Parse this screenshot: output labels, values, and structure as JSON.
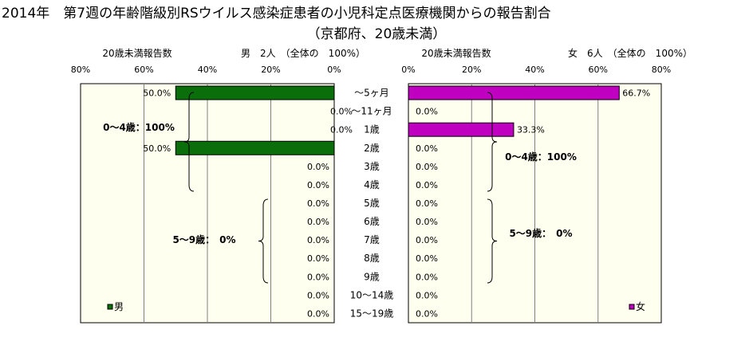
{
  "title_line1": "2014年　第7週の年齢階級別RSウイルス感染症患者の小児科定点医療機関からの報告割合",
  "title_line2": "（京都府、20歳未満）",
  "chart_data": [
    {
      "type": "bar",
      "orientation": "horizontal",
      "direction": "right-to-left",
      "panel": "male",
      "header_left": "20歳未満報告数",
      "header_right": "男　2人　（全体の　100%）",
      "legend": "男",
      "legend_color": "#0a6e0a",
      "bar_color": "#0a6e0a",
      "xlim": [
        0,
        80
      ],
      "x_ticks": [
        "80%",
        "60%",
        "40%",
        "20%",
        "0%"
      ],
      "categories": [
        "～5ヶ月",
        "～11ヶ月",
        "1歳",
        "2歳",
        "3歳",
        "4歳",
        "5歳",
        "6歳",
        "7歳",
        "8歳",
        "9歳",
        "10～14歳",
        "15～19歳"
      ],
      "values": [
        50.0,
        0.0,
        0.0,
        50.0,
        0.0,
        0.0,
        0.0,
        0.0,
        0.0,
        0.0,
        0.0,
        0.0,
        0.0
      ],
      "value_labels": [
        "50.0%",
        "0.0%",
        "0.0%",
        "50.0%",
        "0.0%",
        "0.0%",
        "0.0%",
        "0.0%",
        "0.0%",
        "0.0%",
        "0.0%",
        "0.0%",
        "0.0%"
      ],
      "annotations": [
        "0～4歳：100%",
        "5～9歳：　0%"
      ]
    },
    {
      "type": "bar",
      "orientation": "horizontal",
      "direction": "left-to-right",
      "panel": "female",
      "header_left": "20歳未満報告数",
      "header_right": "女　6人　（全体の　100%）",
      "legend": "女",
      "legend_color": "#c000c0",
      "bar_color": "#c000c0",
      "xlim": [
        0,
        80
      ],
      "x_ticks": [
        "0%",
        "20%",
        "40%",
        "60%",
        "80%"
      ],
      "categories": [
        "～5ヶ月",
        "～11ヶ月",
        "1歳",
        "2歳",
        "3歳",
        "4歳",
        "5歳",
        "6歳",
        "7歳",
        "8歳",
        "9歳",
        "10～14歳",
        "15～19歳"
      ],
      "values": [
        66.7,
        0.0,
        33.3,
        0.0,
        0.0,
        0.0,
        0.0,
        0.0,
        0.0,
        0.0,
        0.0,
        0.0,
        0.0
      ],
      "value_labels": [
        "66.7%",
        "0.0%",
        "33.3%",
        "0.0%",
        "0.0%",
        "0.0%",
        "0.0%",
        "0.0%",
        "0.0%",
        "0.0%",
        "0.0%",
        "0.0%",
        "0.0%"
      ],
      "annotations": [
        "0～4歳：100%",
        "5～9歳：　0%"
      ]
    }
  ]
}
